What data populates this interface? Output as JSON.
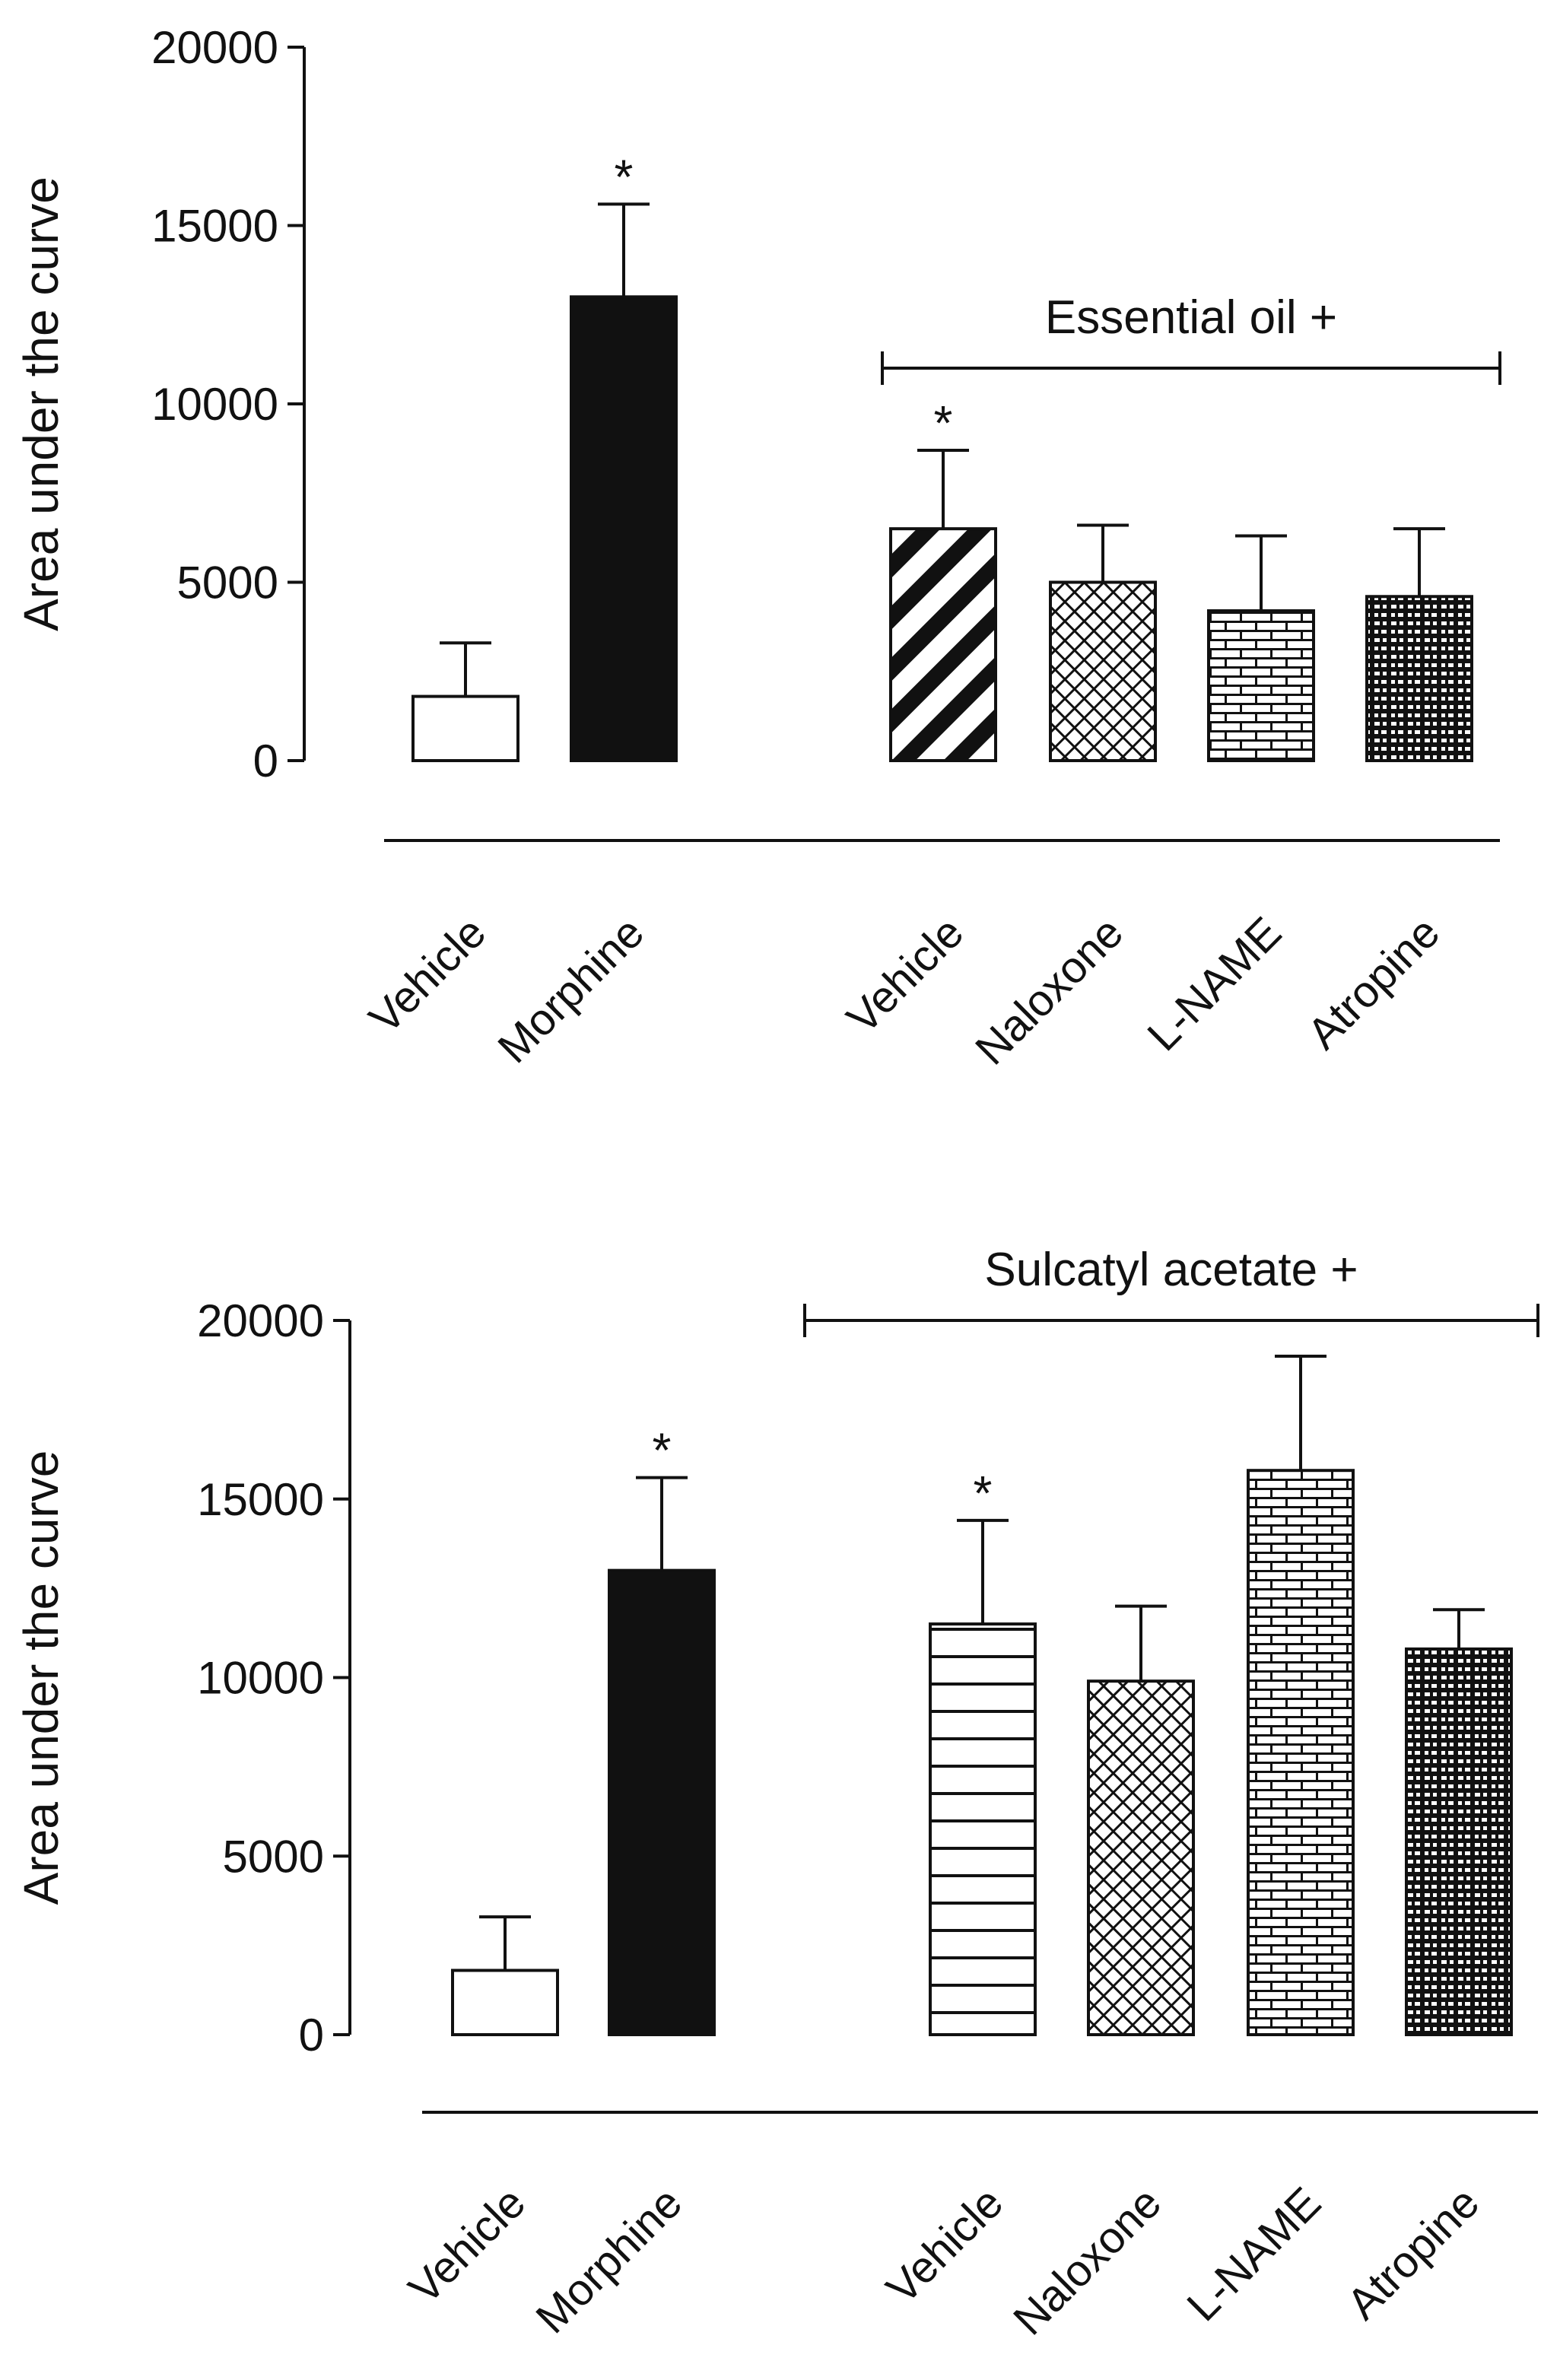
{
  "chart_data": [
    {
      "type": "bar",
      "title": "",
      "xlabel": "",
      "ylabel": "Area under the curve",
      "ylim": [
        0,
        20000
      ],
      "yticks": [
        0,
        5000,
        10000,
        15000,
        20000
      ],
      "group_label": "Essential oil +",
      "categories": [
        "Vehicle",
        "Morphine",
        "Vehicle",
        "Naloxone",
        "L-NAME",
        "Atropine"
      ],
      "values": [
        1800,
        13000,
        6500,
        5000,
        4200,
        4600
      ],
      "errors": [
        1500,
        2600,
        2200,
        1600,
        2100,
        1900
      ],
      "significance": [
        "",
        "*",
        "*",
        "",
        "",
        ""
      ],
      "group_start_index": 2,
      "patterns": [
        "white",
        "black",
        "diagonal-stripes",
        "crosshatch",
        "brick",
        "dense-brick"
      ]
    },
    {
      "type": "bar",
      "title": "",
      "xlabel": "",
      "ylabel": "Area under the curve",
      "ylim": [
        0,
        20000
      ],
      "yticks": [
        0,
        5000,
        10000,
        15000,
        20000
      ],
      "group_label": "Sulcatyl acetate +",
      "categories": [
        "Vehicle",
        "Morphine",
        "Vehicle",
        "Naloxone",
        "L-NAME",
        "Atropine"
      ],
      "values": [
        1800,
        13000,
        11500,
        9900,
        15800,
        10800
      ],
      "errors": [
        1500,
        2600,
        2900,
        2100,
        3200,
        1100
      ],
      "significance": [
        "",
        "*",
        "*",
        "",
        "",
        ""
      ],
      "group_start_index": 2,
      "patterns": [
        "white",
        "black",
        "horizontal-stripes",
        "crosshatch",
        "brick",
        "dense-brick"
      ]
    }
  ]
}
